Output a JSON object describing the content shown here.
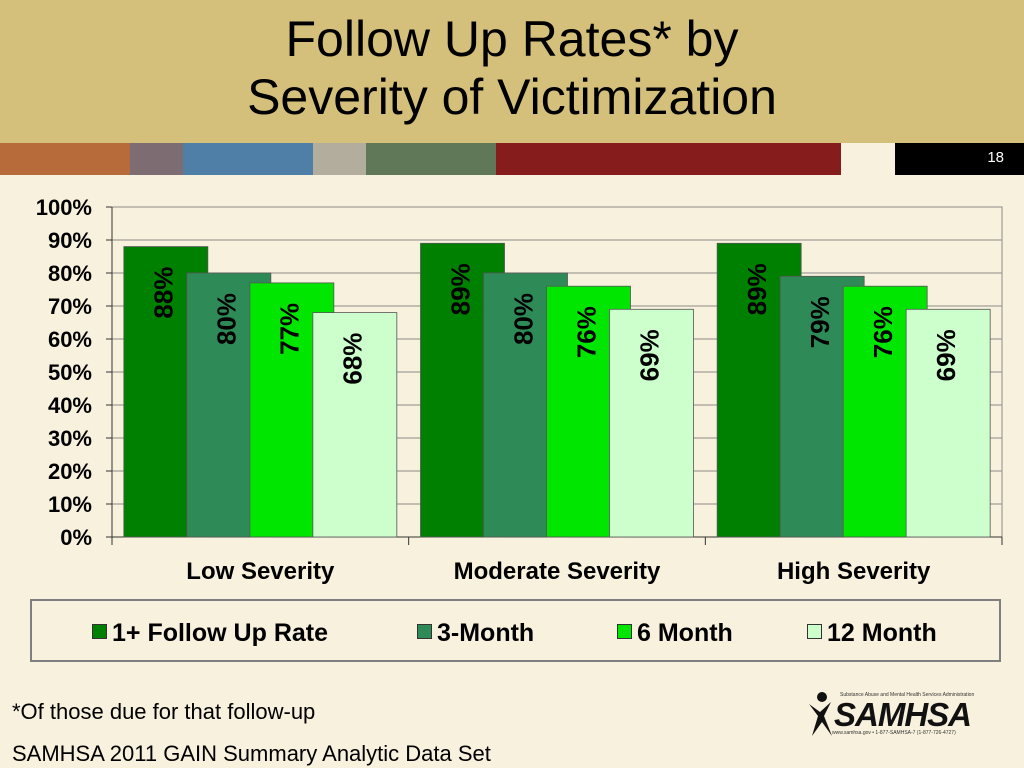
{
  "slide": {
    "title_line1": "Follow Up Rates* by",
    "title_line2": "Severity of Victimization",
    "slide_number": "18",
    "footnote": "*Of those due for that follow-up",
    "source": "SAMHSA 2011 GAIN Summary Analytic Data Set",
    "logo": {
      "name": "SAMHSA",
      "tagline": "Substance Abuse and Mental Health Services Administration",
      "contact": "www.samhsa.gov • 1-877-SAMHSA-7 (1-877-726-4727)",
      "icon": "person-figure-icon"
    },
    "colors": {
      "title_band": "#d4c07a",
      "background": "#f7f1dd",
      "strip": [
        "#b86b3a",
        "#7d6c72",
        "#4f7fa6",
        "#b3ad9e",
        "#617858",
        "#861c1c",
        "#f7f1dd",
        "#000000"
      ]
    }
  },
  "chart_data": {
    "type": "bar",
    "categories": [
      "Low Severity",
      "Moderate Severity",
      "High Severity"
    ],
    "series": [
      {
        "name": "1+ Follow Up Rate",
        "color": "#008000",
        "values": [
          88,
          89,
          89
        ],
        "labels": [
          "88%",
          "89%",
          "89%"
        ]
      },
      {
        "name": "3-Month",
        "color": "#2e8b57",
        "values": [
          80,
          80,
          79
        ],
        "labels": [
          "80%",
          "80%",
          "79%"
        ]
      },
      {
        "name": "6 Month",
        "color": "#00e600",
        "values": [
          77,
          76,
          76
        ],
        "labels": [
          "77%",
          "76%",
          "76%"
        ]
      },
      {
        "name": "12 Month",
        "color": "#ccffcc",
        "values": [
          68,
          69,
          69
        ],
        "labels": [
          "68%",
          "69%",
          "69%"
        ]
      }
    ],
    "y_ticks": [
      "0%",
      "10%",
      "20%",
      "30%",
      "40%",
      "50%",
      "60%",
      "70%",
      "80%",
      "90%",
      "100%"
    ],
    "ylim": [
      0,
      100
    ],
    "grid": true,
    "legend_position": "bottom"
  }
}
